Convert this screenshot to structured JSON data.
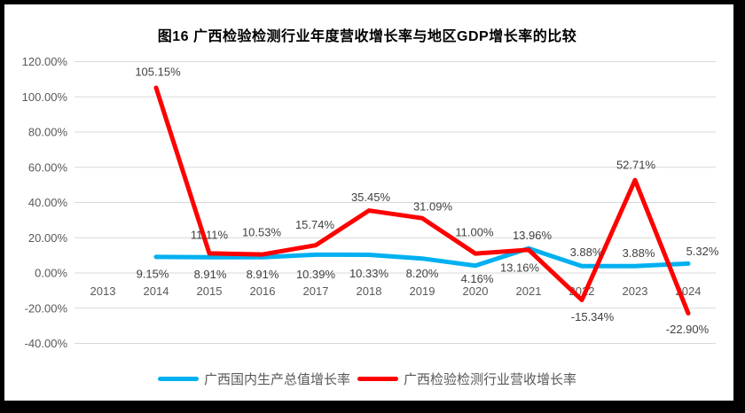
{
  "title": "图16 广西检验检测行业年度营收增长率与地区GDP增长率的比较",
  "colors": {
    "gdp_line": "#00B0F0",
    "revenue_line": "#FF0000",
    "grid": "#D9D9D9",
    "axis_text": "#595959",
    "label_text": "#404040",
    "frame": "#000000",
    "background": "#FFFFFF"
  },
  "legend": {
    "items": [
      {
        "label": "广西国内生产总值增长率",
        "color": "#00B0F0"
      },
      {
        "label": "广西检验检测行业营收增长率",
        "color": "#FF0000"
      }
    ]
  },
  "chart_data": {
    "type": "line",
    "title": "图16 广西检验检测行业年度营收增长率与地区GDP增长率的比较",
    "categories": [
      "2013",
      "2014",
      "2015",
      "2016",
      "2017",
      "2018",
      "2019",
      "2020",
      "2021",
      "2022",
      "2023",
      "2024"
    ],
    "series": [
      {
        "name": "广西国内生产总值增长率",
        "data_name": "gdp-growth-line",
        "color": "#00B0F0",
        "values": [
          null,
          9.15,
          8.91,
          8.91,
          10.39,
          10.33,
          8.2,
          4.16,
          13.96,
          3.88,
          3.88,
          5.32
        ],
        "label_offsets": [
          null,
          [
            -4,
            19
          ],
          [
            1,
            19
          ],
          [
            0,
            19
          ],
          [
            0,
            22
          ],
          [
            0,
            21
          ],
          [
            0,
            17
          ],
          [
            2,
            15
          ],
          [
            4,
            -15
          ],
          [
            5,
            -16
          ],
          [
            4,
            -15
          ],
          [
            16,
            -14
          ]
        ]
      },
      {
        "name": "广西检验检测行业营收增长率",
        "data_name": "revenue-growth-line",
        "color": "#FF0000",
        "values": [
          null,
          105.15,
          11.11,
          10.53,
          15.74,
          35.45,
          31.09,
          11.0,
          13.16,
          -15.34,
          52.71,
          -22.9
        ],
        "label_offsets": [
          null,
          [
            2,
            -18
          ],
          [
            0,
            -21
          ],
          [
            -1,
            -25
          ],
          [
            -1,
            -23
          ],
          [
            2,
            -15
          ],
          [
            12,
            -13
          ],
          [
            -1,
            -24
          ],
          [
            -10,
            20
          ],
          [
            12,
            19
          ],
          [
            1,
            -17
          ],
          [
            -1,
            18
          ]
        ]
      }
    ],
    "ylim": [
      -40,
      120
    ],
    "ytick_step": 20,
    "ytick_labels": [
      "120.00%",
      "100.00%",
      "80.00%",
      "60.00%",
      "40.00%",
      "20.00%",
      "0.00%",
      "-20.00%",
      "-40.00%"
    ],
    "value_format": "percent_2dp",
    "grid": true,
    "legend_position": "bottom"
  }
}
